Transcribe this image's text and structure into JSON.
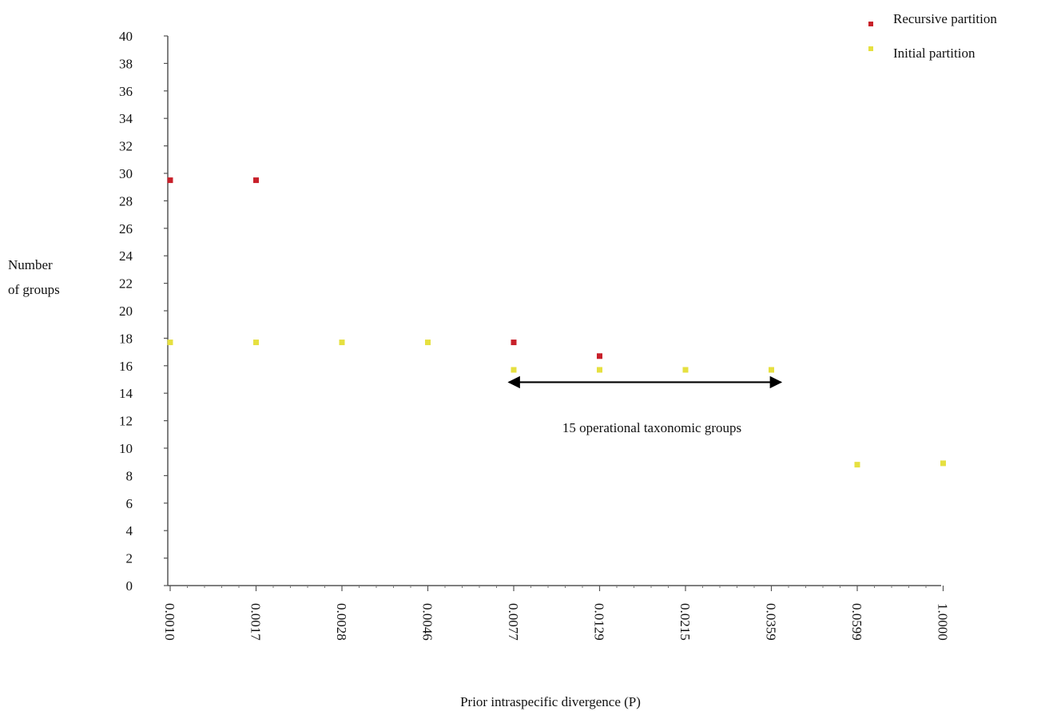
{
  "chart_data": {
    "type": "scatter",
    "title": "",
    "xlabel": "Prior intraspecific divergence (P)",
    "ylabel": [
      "Number",
      "of groups"
    ],
    "categories": [
      "0.0010",
      "0.0017",
      "0.0028",
      "0.0046",
      "0.0077",
      "0.0129",
      "0.0215",
      "0.0359",
      "0.0599",
      "1.0000"
    ],
    "ylim": [
      0,
      40
    ],
    "yticks": [
      0,
      2,
      4,
      6,
      8,
      10,
      12,
      14,
      16,
      18,
      20,
      22,
      24,
      26,
      28,
      30,
      32,
      34,
      36,
      38,
      40
    ],
    "grid": false,
    "legend_position": "top-right",
    "series": [
      {
        "name": "Recursive partition",
        "color": "#c8202a",
        "points": [
          {
            "x": "0.0010",
            "y": 29.5
          },
          {
            "x": "0.0017",
            "y": 29.5
          },
          {
            "x": "0.0077",
            "y": 17.7
          },
          {
            "x": "0.0129",
            "y": 16.7
          }
        ]
      },
      {
        "name": "Initial partition",
        "color": "#e6e040",
        "points": [
          {
            "x": "0.0010",
            "y": 17.7
          },
          {
            "x": "0.0017",
            "y": 17.7
          },
          {
            "x": "0.0028",
            "y": 17.7
          },
          {
            "x": "0.0046",
            "y": 17.7
          },
          {
            "x": "0.0077",
            "y": 15.7
          },
          {
            "x": "0.0129",
            "y": 15.7
          },
          {
            "x": "0.0215",
            "y": 15.7
          },
          {
            "x": "0.0359",
            "y": 15.7
          },
          {
            "x": "0.0599",
            "y": 8.8
          },
          {
            "x": "1.0000",
            "y": 8.9
          }
        ]
      }
    ],
    "annotation": {
      "text": "15 operational taxonomic groups",
      "arrow_from": "0.0077",
      "arrow_to": "0.0359",
      "arrow_y": 14.8
    }
  }
}
